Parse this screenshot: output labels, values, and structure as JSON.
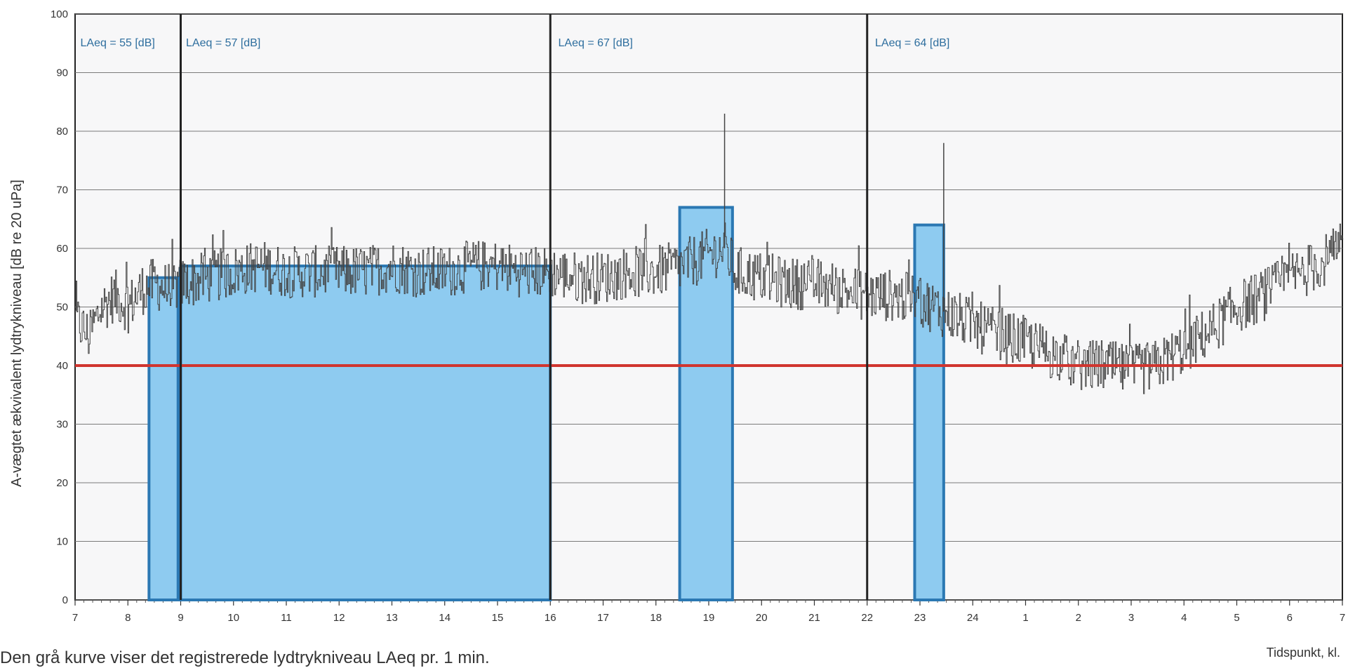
{
  "caption": "Den grå kurve viser det registrerede lydtrykniveau LAeq pr. 1 min.",
  "chart_data": {
    "type": "line",
    "title": "",
    "xlabel": "Tidspunkt, kl.",
    "ylabel": "A-vægtet ækvivalent lydtrykniveau [dB re 20 uPa]",
    "ylim": [
      0,
      100
    ],
    "xlim": [
      7,
      31
    ],
    "y_ticks": [
      "0",
      "10",
      "20",
      "30",
      "40",
      "50",
      "60",
      "70",
      "80",
      "90",
      "100"
    ],
    "x_ticks": [
      "7",
      "8",
      "9",
      "10",
      "11",
      "12",
      "13",
      "14",
      "15",
      "16",
      "17",
      "18",
      "19",
      "20",
      "21",
      "22",
      "23",
      "24",
      "1",
      "2",
      "3",
      "4",
      "5",
      "6",
      "7"
    ],
    "grid": true,
    "limit_line": {
      "value": 40,
      "color": "#d0352f"
    },
    "period_dividers": [
      9,
      16,
      22
    ],
    "series": [
      {
        "color": "#555555",
        "points": [
          [
            7.0,
            48
          ],
          [
            7.25,
            45
          ],
          [
            7.5,
            50
          ],
          [
            7.75,
            52
          ],
          [
            8.0,
            50
          ],
          [
            8.25,
            53
          ],
          [
            8.5,
            54
          ],
          [
            8.75,
            53
          ],
          [
            9.0,
            54
          ],
          [
            9.5,
            55
          ],
          [
            10.0,
            56
          ],
          [
            10.5,
            57
          ],
          [
            11.0,
            56
          ],
          [
            11.5,
            56
          ],
          [
            12.0,
            56
          ],
          [
            12.5,
            56
          ],
          [
            13.0,
            57
          ],
          [
            13.5,
            56
          ],
          [
            14.0,
            56
          ],
          [
            14.5,
            57
          ],
          [
            15.0,
            57
          ],
          [
            15.5,
            56
          ],
          [
            16.0,
            56
          ],
          [
            16.5,
            55
          ],
          [
            17.0,
            55
          ],
          [
            17.5,
            56
          ],
          [
            18.0,
            56
          ],
          [
            18.5,
            57
          ],
          [
            19.0,
            59
          ],
          [
            19.3,
            60
          ],
          [
            19.5,
            56
          ],
          [
            20.0,
            55
          ],
          [
            20.5,
            54
          ],
          [
            21.0,
            54
          ],
          [
            21.5,
            53
          ],
          [
            22.0,
            52
          ],
          [
            22.5,
            52
          ],
          [
            23.0,
            51
          ],
          [
            23.5,
            49
          ],
          [
            24.0,
            47
          ],
          [
            24.5,
            45
          ],
          [
            25.0,
            44
          ],
          [
            25.5,
            42
          ],
          [
            26.0,
            40
          ],
          [
            26.5,
            40
          ],
          [
            27.0,
            39
          ],
          [
            27.5,
            40
          ],
          [
            28.0,
            43
          ],
          [
            28.5,
            46
          ],
          [
            29.0,
            50
          ],
          [
            29.5,
            52
          ],
          [
            30.0,
            55
          ],
          [
            30.5,
            57
          ],
          [
            31.0,
            60
          ]
        ]
      }
    ],
    "peaks": [
      [
        19.3,
        83
      ],
      [
        23.45,
        78
      ]
    ],
    "leq_bars": [
      {
        "x0": 8.4,
        "x1": 8.95,
        "value": 55,
        "label": "LAeq = 55 [dB]"
      },
      {
        "x0": 9.0,
        "x1": 16.0,
        "value": 57,
        "label": "LAeq = 57 [dB]"
      },
      {
        "x0": 18.45,
        "x1": 19.45,
        "value": 67,
        "label": "LAeq = 67 [dB]"
      },
      {
        "x0": 22.9,
        "x1": 23.45,
        "value": 64,
        "label": "LAeq = 64 [dB]"
      }
    ],
    "leq_label_x": [
      7.1,
      9.1,
      16.15,
      22.15
    ],
    "colors": {
      "bar_fill": "#8ecbf0",
      "bar_stroke": "#2b78b3",
      "trace": "#444444"
    }
  }
}
